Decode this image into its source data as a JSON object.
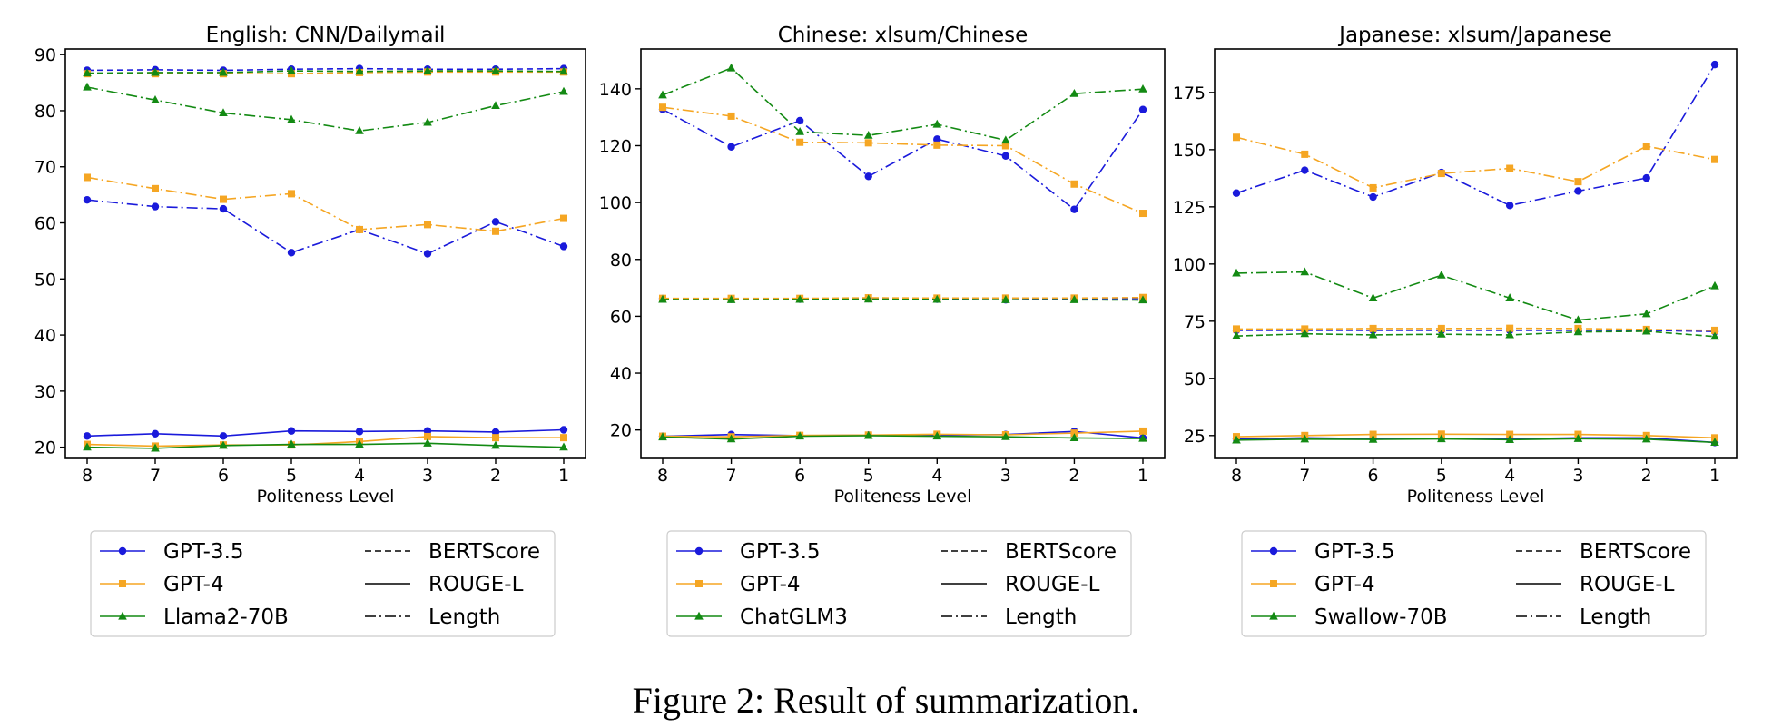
{
  "figure": {
    "caption": "Figure 2: Result of summarization."
  },
  "style": {
    "colors": {
      "GPT-3.5": "#1a1adb",
      "GPT-4": "#f5a623",
      "third": "#138a13"
    },
    "markers": {
      "GPT-3.5": "circle",
      "GPT-4": "square",
      "third": "triangle"
    },
    "linestyles": {
      "BERTScore": "dashed",
      "ROUGE-L": "solid",
      "Length": "dashdot"
    }
  },
  "chart_data": [
    {
      "type": "line",
      "title": "English: CNN/Dailymail",
      "xlabel": "Politeness Level",
      "ylabel": "",
      "x": [
        8,
        7,
        6,
        5,
        4,
        3,
        2,
        1
      ],
      "xticks": [
        "8",
        "7",
        "6",
        "5",
        "4",
        "3",
        "2",
        "1"
      ],
      "ylim": [
        18,
        91
      ],
      "yticks": [
        20,
        30,
        40,
        50,
        60,
        70,
        80,
        90
      ],
      "grid": false,
      "legend": {
        "models": [
          "GPT-3.5",
          "GPT-4",
          "Llama2-70B"
        ],
        "metrics": [
          "BERTScore",
          "ROUGE-L",
          "Length"
        ]
      },
      "series": [
        {
          "model": "GPT-3.5",
          "metric": "BERTScore",
          "values": [
            87.2,
            87.3,
            87.2,
            87.4,
            87.5,
            87.4,
            87.4,
            87.5
          ]
        },
        {
          "model": "GPT-4",
          "metric": "BERTScore",
          "values": [
            86.6,
            86.6,
            86.6,
            86.6,
            86.8,
            86.9,
            86.9,
            86.9
          ]
        },
        {
          "model": "Llama2-70B",
          "metric": "BERTScore",
          "values": [
            86.7,
            86.8,
            86.8,
            87.1,
            87.0,
            87.1,
            87.1,
            87.0
          ]
        },
        {
          "model": "GPT-3.5",
          "metric": "ROUGE-L",
          "values": [
            22.0,
            22.4,
            22.0,
            22.9,
            22.8,
            22.9,
            22.7,
            23.1
          ]
        },
        {
          "model": "GPT-4",
          "metric": "ROUGE-L",
          "values": [
            20.5,
            20.2,
            20.4,
            20.4,
            21.0,
            21.9,
            21.7,
            21.7
          ]
        },
        {
          "model": "Llama2-70B",
          "metric": "ROUGE-L",
          "values": [
            20.0,
            19.8,
            20.3,
            20.5,
            20.5,
            20.7,
            20.3,
            20.0
          ]
        },
        {
          "model": "GPT-3.5",
          "metric": "Length",
          "values": [
            64.1,
            62.9,
            62.5,
            54.7,
            58.8,
            54.5,
            60.2,
            55.8
          ]
        },
        {
          "model": "GPT-4",
          "metric": "Length",
          "values": [
            68.1,
            66.1,
            64.2,
            65.2,
            58.8,
            59.7,
            58.5,
            60.8
          ]
        },
        {
          "model": "Llama2-70B",
          "metric": "Length",
          "values": [
            84.2,
            81.9,
            79.6,
            78.4,
            76.4,
            77.9,
            80.9,
            83.4
          ]
        }
      ]
    },
    {
      "type": "line",
      "title": "Chinese: xlsum/Chinese",
      "xlabel": "Politeness Level",
      "ylabel": "",
      "x": [
        8,
        7,
        6,
        5,
        4,
        3,
        2,
        1
      ],
      "xticks": [
        "8",
        "7",
        "6",
        "5",
        "4",
        "3",
        "2",
        "1"
      ],
      "ylim": [
        10,
        154
      ],
      "yticks": [
        20,
        40,
        60,
        80,
        100,
        120,
        140
      ],
      "grid": false,
      "legend": {
        "models": [
          "GPT-3.5",
          "GPT-4",
          "ChatGLM3"
        ],
        "metrics": [
          "BERTScore",
          "ROUGE-L",
          "Length"
        ]
      },
      "series": [
        {
          "model": "GPT-3.5",
          "metric": "BERTScore",
          "values": [
            66.2,
            66.0,
            66.0,
            66.2,
            66.0,
            65.8,
            66.2,
            66.2
          ]
        },
        {
          "model": "GPT-4",
          "metric": "BERTScore",
          "values": [
            66.3,
            66.3,
            66.3,
            66.5,
            66.4,
            66.4,
            66.4,
            66.6
          ]
        },
        {
          "model": "ChatGLM3",
          "metric": "BERTScore",
          "values": [
            65.9,
            65.8,
            65.9,
            66.0,
            65.9,
            65.8,
            65.8,
            65.7
          ]
        },
        {
          "model": "GPT-3.5",
          "metric": "ROUGE-L",
          "values": [
            17.8,
            18.4,
            18.0,
            18.2,
            18.2,
            18.4,
            19.5,
            17.2
          ]
        },
        {
          "model": "GPT-4",
          "metric": "ROUGE-L",
          "values": [
            17.8,
            17.6,
            18.1,
            18.2,
            18.5,
            18.3,
            18.9,
            19.6
          ]
        },
        {
          "model": "ChatGLM3",
          "metric": "ROUGE-L",
          "values": [
            17.5,
            16.8,
            17.8,
            18.0,
            17.8,
            17.6,
            17.2,
            17.0
          ]
        },
        {
          "model": "GPT-3.5",
          "metric": "Length",
          "values": [
            132.8,
            119.6,
            128.8,
            109.2,
            122.3,
            116.4,
            97.6,
            132.7
          ]
        },
        {
          "model": "GPT-4",
          "metric": "Length",
          "values": [
            133.5,
            130.4,
            121.2,
            121.0,
            120.2,
            120.0,
            106.5,
            96.2
          ]
        },
        {
          "model": "ChatGLM3",
          "metric": "Length",
          "values": [
            137.8,
            147.3,
            124.9,
            123.6,
            127.5,
            121.9,
            138.3,
            139.9
          ]
        }
      ]
    },
    {
      "type": "line",
      "title": "Japanese: xlsum/Japanese",
      "xlabel": "Politeness Level",
      "ylabel": "",
      "x": [
        8,
        7,
        6,
        5,
        4,
        3,
        2,
        1
      ],
      "xticks": [
        "8",
        "7",
        "6",
        "5",
        "4",
        "3",
        "2",
        "1"
      ],
      "ylim": [
        15,
        194
      ],
      "yticks": [
        25,
        50,
        75,
        100,
        125,
        150,
        175
      ],
      "grid": false,
      "legend": {
        "models": [
          "GPT-3.5",
          "GPT-4",
          "Swallow-70B"
        ],
        "metrics": [
          "BERTScore",
          "ROUGE-L",
          "Length"
        ]
      },
      "series": [
        {
          "model": "GPT-3.5",
          "metric": "BERTScore",
          "values": [
            71.0,
            71.0,
            71.0,
            71.0,
            71.0,
            71.0,
            71.0,
            70.5
          ]
        },
        {
          "model": "GPT-4",
          "metric": "BERTScore",
          "values": [
            71.6,
            71.6,
            71.8,
            71.8,
            71.9,
            71.8,
            71.4,
            71.0
          ]
        },
        {
          "model": "Swallow-70B",
          "metric": "BERTScore",
          "values": [
            68.5,
            69.5,
            69.0,
            69.3,
            69.0,
            70.3,
            70.6,
            68.3
          ]
        },
        {
          "model": "GPT-3.5",
          "metric": "ROUGE-L",
          "values": [
            23.5,
            24.0,
            23.6,
            23.8,
            23.5,
            24.0,
            24.0,
            22.0
          ]
        },
        {
          "model": "GPT-4",
          "metric": "ROUGE-L",
          "values": [
            24.5,
            25.0,
            25.5,
            25.6,
            25.5,
            25.5,
            25.0,
            24.0
          ]
        },
        {
          "model": "Swallow-70B",
          "metric": "ROUGE-L",
          "values": [
            23.0,
            23.4,
            23.3,
            23.5,
            23.2,
            23.6,
            23.4,
            22.0
          ]
        },
        {
          "model": "GPT-3.5",
          "metric": "Length",
          "values": [
            131.0,
            141.0,
            129.3,
            140.0,
            125.6,
            131.9,
            137.6,
            187.2
          ]
        },
        {
          "model": "GPT-4",
          "metric": "Length",
          "values": [
            155.4,
            148.0,
            133.3,
            139.6,
            141.8,
            136.0,
            151.5,
            145.7
          ]
        },
        {
          "model": "Swallow-70B",
          "metric": "Length",
          "values": [
            96.0,
            96.5,
            85.1,
            95.1,
            85.1,
            75.5,
            78.2,
            90.4
          ]
        }
      ]
    }
  ]
}
